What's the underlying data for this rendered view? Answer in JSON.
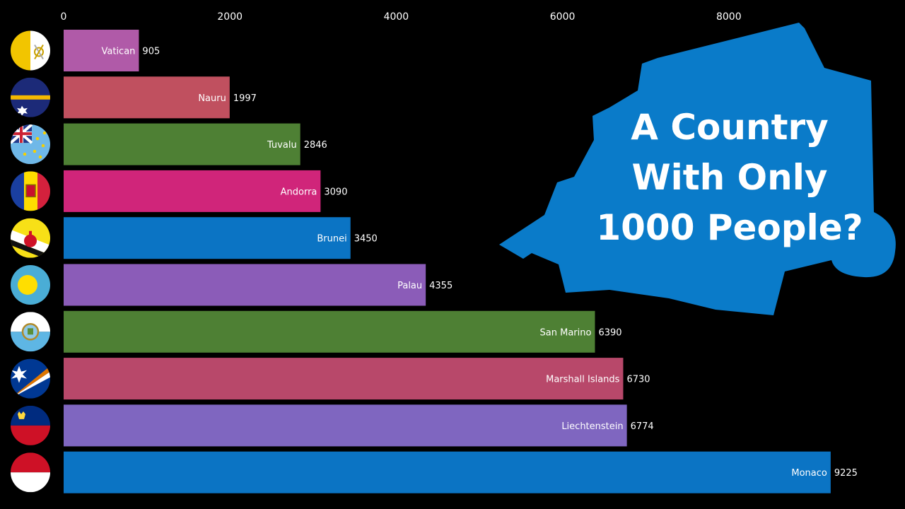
{
  "chart_data": {
    "type": "bar",
    "orientation": "horizontal",
    "axis_position": "top",
    "xlim": [
      0,
      9400
    ],
    "ticks": [
      0,
      2000,
      4000,
      6000,
      8000
    ],
    "grid": false,
    "legend": "none",
    "categories": [
      "Vatican",
      "Nauru",
      "Tuvalu",
      "Andorra",
      "Brunei",
      "Palau",
      "San Marino",
      "Marshall Islands",
      "Liechtenstein",
      "Monaco"
    ],
    "values": [
      905,
      1997,
      2846,
      3090,
      3450,
      4355,
      6390,
      6730,
      6774,
      9225
    ],
    "bar_colors": [
      "#b05aa8",
      "#c0505f",
      "#4e8034",
      "#d0257a",
      "#0b74c4",
      "#8b5cb8",
      "#4e8034",
      "#b8486a",
      "#7f66c0",
      "#0b74c4"
    ],
    "flag_icons": [
      "vatican-flag-icon",
      "nauru-flag-icon",
      "tuvalu-flag-icon",
      "andorra-flag-icon",
      "brunei-flag-icon",
      "palau-flag-icon",
      "san-marino-flag-icon",
      "marshall-islands-flag-icon",
      "liechtenstein-flag-icon",
      "monaco-flag-icon"
    ]
  },
  "overlay": {
    "headline_lines": [
      "A Country",
      "With Only",
      "1000 People?"
    ],
    "map_shape": "vatican-city-outline",
    "map_color": "#0a7bc9"
  },
  "colors": {
    "background": "#000000",
    "text": "#ffffff"
  }
}
